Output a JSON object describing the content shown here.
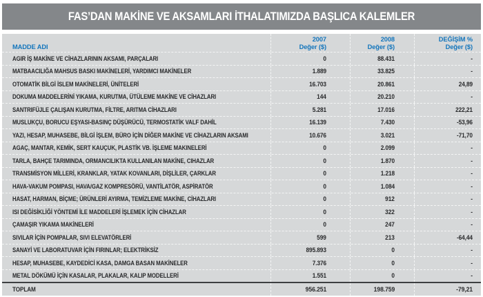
{
  "title": "FAS’DAN MAKİNE VE AKSAMLARI İTHALATIMIZDA BAŞLICA KALEMLER",
  "colors": {
    "title_bar_bg": "#84878a",
    "table_bg": "#d6d8d9",
    "header_text_blue": "#1375bc",
    "body_text": "#28292b",
    "separator_white": "#f4f5f5",
    "total_rule_dark": "#3d3f41"
  },
  "table": {
    "columns": {
      "name": "MADDE ADI",
      "y2007_line1": "2007",
      "y2007_line2": "Değer ($)",
      "y2008_line1": "2008",
      "y2008_line2": "Değer ($)",
      "change_line1": "DEĞİŞİM %",
      "change_line2": "Değer ($)"
    },
    "rows": [
      {
        "name": "AGIR İŞ MAKİNE VE CİHAZLARININ AKSAMI, PARÇALARI",
        "v2007": "0",
        "v2008": "88.431",
        "change": "-"
      },
      {
        "name": "MATBAACILIĞA MAHSUS BASKI MAKİNELERİ, YARDIMCI MAKİNELER",
        "v2007": "1.889",
        "v2008": "33.825",
        "change": "-"
      },
      {
        "name": "OTOMATİK BİLGİ İSLEM MAKİNELERİ, ÜNİTELERİ",
        "v2007": "16.703",
        "v2008": "20.861",
        "change": "24,89"
      },
      {
        "name": "DOKUMA MADDELERİNİ YIKAMA, KURUTMA, ÜTÜLEME MAKİNE VE CİHAZLARI",
        "v2007": "144",
        "v2008": "20.210",
        "change": "-"
      },
      {
        "name": "SANTRIFÜJLE ÇALIŞAN KURUTMA, FİLTRE, ARITMA CİHAZLARI",
        "v2007": "5.281",
        "v2008": "17.016",
        "change": "222,21"
      },
      {
        "name": "MUSLUKÇU, BORUCU EŞYASI-BASINÇ DÜŞÜRÜCÜ, TERMOSTATİK VALF DAHİL",
        "v2007": "16.139",
        "v2008": "7.430",
        "change": "-53,96"
      },
      {
        "name": "YAZI, HESAP, MUHASEBE, BİLGİ İŞLEM, BÜRO İÇİN DİĞER MAKİNE VE CİHAZLARIN AKSAMI",
        "v2007": "10.676",
        "v2008": "3.021",
        "change": "-71,70"
      },
      {
        "name": "AGAÇ, MANTAR, KEMİK, SERT KAUÇUK, PLASTİK VB. İŞLEME MAKINELERİ",
        "v2007": "0",
        "v2008": "2.099",
        "change": "-"
      },
      {
        "name": "TARLA, BAHÇE TARIMINDA, ORMANCILIKTA KULLANILAN MAKİNE, CIHAZLAR",
        "v2007": "0",
        "v2008": "1.870",
        "change": "-"
      },
      {
        "name": "TRANSMİSYON MİLLERİ, KRANKLAR, YATAK KOVANLARI, DİŞLİLER, ÇARKLAR",
        "v2007": "0",
        "v2008": "1.218",
        "change": "-"
      },
      {
        "name": "HAVA-VAKUM POMPASI, HAVA/GAZ KOMPRESÖRÜ, VANTİLATÖR, ASPİRATÖR",
        "v2007": "0",
        "v2008": "1.084",
        "change": "-"
      },
      {
        "name": "HASAT, HARMAN, BİÇME; ÜRÜNLERİ AYIRMA, TEMİZLEME MAKİNE, CİHAZLARI",
        "v2007": "0",
        "v2008": "912",
        "change": "-"
      },
      {
        "name": "ISI DEĞİSİKLİĞİ YÖNTEMİ İLE MADDELERİ İŞLEMEK İÇİN CİHAZLAR",
        "v2007": "0",
        "v2008": "322",
        "change": "-"
      },
      {
        "name": "ÇAMAŞIR YIKAMA MAKİNELERİ",
        "v2007": "0",
        "v2008": "247",
        "change": "-"
      },
      {
        "name": "SIVILAR İÇİN POMPALAR, SIVI ELEVATÖRLERİ",
        "v2007": "599",
        "v2008": "213",
        "change": "-64,44"
      },
      {
        "name": "SANAYİ VE LABORATUVAR İÇİN FIRINLAR; ELEKTRİKSİZ",
        "v2007": "895.893",
        "v2008": "0",
        "change": "-"
      },
      {
        "name": "HESAP, MUHASEBE, KAYDEDİCİ KASA, DAMGA BASAN MAKİNELER",
        "v2007": "7.376",
        "v2008": "0",
        "change": "-"
      },
      {
        "name": "METAL DÖKÜMÜ İÇİN KASALAR, PLAKALAR, KALIP MODELLERİ",
        "v2007": "1.551",
        "v2008": "0",
        "change": "-"
      }
    ],
    "total": {
      "name": "TOPLAM",
      "v2007": "956.251",
      "v2008": "198.759",
      "change": "-79,21"
    }
  }
}
